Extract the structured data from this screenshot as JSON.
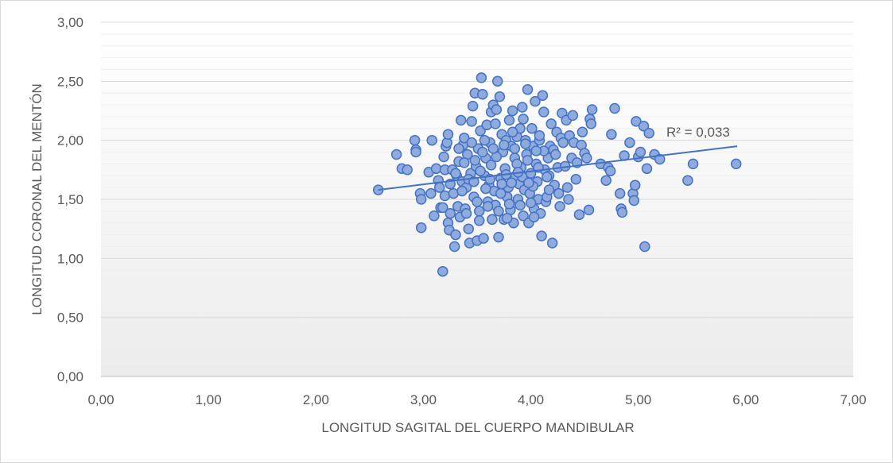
{
  "chart_data": {
    "type": "scatter",
    "title": "",
    "xlabel": "LONGITUD SAGITAL DEL CUERPO MANDIBULAR",
    "ylabel": "LONGITUD CORONAL DEL MENTÓN",
    "xlim": [
      0,
      7
    ],
    "ylim": [
      0,
      3
    ],
    "x_ticks": [
      "0,00",
      "1,00",
      "2,00",
      "3,00",
      "4,00",
      "5,00",
      "6,00",
      "7,00"
    ],
    "y_ticks": [
      "0,00",
      "0,50",
      "1,00",
      "1,50",
      "2,00",
      "2,50",
      "3,00"
    ],
    "grid": true,
    "legend": "none",
    "trendline": {
      "type": "linear",
      "x": [
        2.58,
        5.92
      ],
      "y": [
        1.58,
        1.95
      ],
      "label": "R² = 0,033"
    },
    "colors": {
      "marker_fill": "#8faadc",
      "marker_stroke": "#4472c4",
      "trendline": "#4472c4",
      "grid": "#d9d9d9"
    },
    "points": [
      [
        2.58,
        1.58
      ],
      [
        2.75,
        1.88
      ],
      [
        2.8,
        1.76
      ],
      [
        2.85,
        1.75
      ],
      [
        2.92,
        2.0
      ],
      [
        2.93,
        1.92
      ],
      [
        2.93,
        1.9
      ],
      [
        2.97,
        1.55
      ],
      [
        2.98,
        1.5
      ],
      [
        2.98,
        1.26
      ],
      [
        3.05,
        1.73
      ],
      [
        3.07,
        1.55
      ],
      [
        3.08,
        2.0
      ],
      [
        3.1,
        1.36
      ],
      [
        3.12,
        1.76
      ],
      [
        3.14,
        1.66
      ],
      [
        3.15,
        1.6
      ],
      [
        3.16,
        1.43
      ],
      [
        3.18,
        1.43
      ],
      [
        3.18,
        0.89
      ],
      [
        3.19,
        1.86
      ],
      [
        3.2,
        1.75
      ],
      [
        3.2,
        1.53
      ],
      [
        3.21,
        1.95
      ],
      [
        3.22,
        1.98
      ],
      [
        3.23,
        2.05
      ],
      [
        3.23,
        1.3
      ],
      [
        3.24,
        1.24
      ],
      [
        3.25,
        1.38
      ],
      [
        3.27,
        1.75
      ],
      [
        3.28,
        1.55
      ],
      [
        3.29,
        1.1
      ],
      [
        3.3,
        1.2
      ],
      [
        3.31,
        1.7
      ],
      [
        3.32,
        1.44
      ],
      [
        3.33,
        1.82
      ],
      [
        3.34,
        1.35
      ],
      [
        3.35,
        2.17
      ],
      [
        3.36,
        1.65
      ],
      [
        3.37,
        1.96
      ],
      [
        3.38,
        2.02
      ],
      [
        3.39,
        1.42
      ],
      [
        3.4,
        1.38
      ],
      [
        3.4,
        1.6
      ],
      [
        3.41,
        1.88
      ],
      [
        3.42,
        1.25
      ],
      [
        3.43,
        1.13
      ],
      [
        3.44,
        1.72
      ],
      [
        3.45,
        2.16
      ],
      [
        3.46,
        2.29
      ],
      [
        3.47,
        1.52
      ],
      [
        3.48,
        2.4
      ],
      [
        3.49,
        1.78
      ],
      [
        3.5,
        1.15
      ],
      [
        3.51,
        1.93
      ],
      [
        3.52,
        1.4
      ],
      [
        3.53,
        2.08
      ],
      [
        3.54,
        2.53
      ],
      [
        3.55,
        2.39
      ],
      [
        3.56,
        1.17
      ],
      [
        3.57,
        1.7
      ],
      [
        3.58,
        1.85
      ],
      [
        3.59,
        2.13
      ],
      [
        3.6,
        1.48
      ],
      [
        3.61,
        1.62
      ],
      [
        3.62,
        1.98
      ],
      [
        3.63,
        2.24
      ],
      [
        3.64,
        1.33
      ],
      [
        3.65,
        2.3
      ],
      [
        3.66,
        1.57
      ],
      [
        3.67,
        1.45
      ],
      [
        3.68,
        2.26
      ],
      [
        3.69,
        2.5
      ],
      [
        3.7,
        1.18
      ],
      [
        3.71,
        2.37
      ],
      [
        3.72,
        1.68
      ],
      [
        3.73,
        2.05
      ],
      [
        3.74,
        1.9
      ],
      [
        3.75,
        1.33
      ],
      [
        3.76,
        1.76
      ],
      [
        3.77,
        2.0
      ],
      [
        3.78,
        1.52
      ],
      [
        3.79,
        1.6
      ],
      [
        3.8,
        2.17
      ],
      [
        3.81,
        1.41
      ],
      [
        3.82,
        1.95
      ],
      [
        3.83,
        2.25
      ],
      [
        3.84,
        1.3
      ],
      [
        3.85,
        1.85
      ],
      [
        3.86,
        1.7
      ],
      [
        3.87,
        2.03
      ],
      [
        3.88,
        1.5
      ],
      [
        3.89,
        1.63
      ],
      [
        3.9,
        2.1
      ],
      [
        3.91,
        1.77
      ],
      [
        3.92,
        2.28
      ],
      [
        3.93,
        1.36
      ],
      [
        3.94,
        1.58
      ],
      [
        3.95,
        2.0
      ],
      [
        3.96,
        1.88
      ],
      [
        3.97,
        2.43
      ],
      [
        3.98,
        1.3
      ],
      [
        3.99,
        1.55
      ],
      [
        4.0,
        1.72
      ],
      [
        4.01,
        2.1
      ],
      [
        4.02,
        1.95
      ],
      [
        4.03,
        1.42
      ],
      [
        4.04,
        2.33
      ],
      [
        4.05,
        1.8
      ],
      [
        4.06,
        1.65
      ],
      [
        4.07,
        1.5
      ],
      [
        4.08,
        2.0
      ],
      [
        4.09,
        1.38
      ],
      [
        4.1,
        1.19
      ],
      [
        4.11,
        2.38
      ],
      [
        4.12,
        2.24
      ],
      [
        4.13,
        1.75
      ],
      [
        4.14,
        1.48
      ],
      [
        4.15,
        1.52
      ],
      [
        4.16,
        1.85
      ],
      [
        4.17,
        1.7
      ],
      [
        4.18,
        1.95
      ],
      [
        4.19,
        2.14
      ],
      [
        4.2,
        1.13
      ],
      [
        4.21,
        1.92
      ],
      [
        4.22,
        1.62
      ],
      [
        4.23,
        1.88
      ],
      [
        4.24,
        2.07
      ],
      [
        4.25,
        1.77
      ],
      [
        4.26,
        1.55
      ],
      [
        4.27,
        1.44
      ],
      [
        4.28,
        2.02
      ],
      [
        4.29,
        2.23
      ],
      [
        4.3,
        1.98
      ],
      [
        4.32,
        1.78
      ],
      [
        4.33,
        2.17
      ],
      [
        4.34,
        1.6
      ],
      [
        4.35,
        1.5
      ],
      [
        4.36,
        2.04
      ],
      [
        4.38,
        1.85
      ],
      [
        4.39,
        2.21
      ],
      [
        4.4,
        1.98
      ],
      [
        4.42,
        1.67
      ],
      [
        4.43,
        1.81
      ],
      [
        4.45,
        1.37
      ],
      [
        4.47,
        1.96
      ],
      [
        4.48,
        2.07
      ],
      [
        4.5,
        1.89
      ],
      [
        4.52,
        1.85
      ],
      [
        4.54,
        1.41
      ],
      [
        4.55,
        2.18
      ],
      [
        4.56,
        2.14
      ],
      [
        4.57,
        2.26
      ],
      [
        4.65,
        1.8
      ],
      [
        4.7,
        1.66
      ],
      [
        4.72,
        1.77
      ],
      [
        4.74,
        1.74
      ],
      [
        4.75,
        2.05
      ],
      [
        4.78,
        2.27
      ],
      [
        4.83,
        1.55
      ],
      [
        4.84,
        1.42
      ],
      [
        4.85,
        1.39
      ],
      [
        4.87,
        1.87
      ],
      [
        4.92,
        1.98
      ],
      [
        4.95,
        1.55
      ],
      [
        4.96,
        1.49
      ],
      [
        4.97,
        1.62
      ],
      [
        4.98,
        2.16
      ],
      [
        5.0,
        1.86
      ],
      [
        5.02,
        1.9
      ],
      [
        5.05,
        2.12
      ],
      [
        5.06,
        1.1
      ],
      [
        5.08,
        1.76
      ],
      [
        5.1,
        2.06
      ],
      [
        5.15,
        1.88
      ],
      [
        5.2,
        1.84
      ],
      [
        5.46,
        1.66
      ],
      [
        5.51,
        1.8
      ],
      [
        5.91,
        1.8
      ],
      [
        3.25,
        1.63
      ],
      [
        3.3,
        1.72
      ],
      [
        3.36,
        1.57
      ],
      [
        3.42,
        1.67
      ],
      [
        3.48,
        1.83
      ],
      [
        3.53,
        1.74
      ],
      [
        3.58,
        1.59
      ],
      [
        3.63,
        1.79
      ],
      [
        3.68,
        1.86
      ],
      [
        3.72,
        1.55
      ],
      [
        3.77,
        1.71
      ],
      [
        3.82,
        1.64
      ],
      [
        3.87,
        1.8
      ],
      [
        3.92,
        1.69
      ],
      [
        3.97,
        1.83
      ],
      [
        4.02,
        1.61
      ],
      [
        4.07,
        1.77
      ],
      [
        4.12,
        1.91
      ],
      [
        4.17,
        1.58
      ],
      [
        3.45,
        1.98
      ],
      [
        3.55,
        1.9
      ],
      [
        3.65,
        1.93
      ],
      [
        3.75,
        1.96
      ],
      [
        3.85,
        1.93
      ],
      [
        3.95,
        1.97
      ],
      [
        4.05,
        1.91
      ],
      [
        3.5,
        1.48
      ],
      [
        3.6,
        1.44
      ],
      [
        3.7,
        1.4
      ],
      [
        3.8,
        1.46
      ],
      [
        3.9,
        1.45
      ],
      [
        4.0,
        1.47
      ],
      [
        3.38,
        1.81
      ],
      [
        3.62,
        1.67
      ],
      [
        3.88,
        1.73
      ],
      [
        4.15,
        1.69
      ],
      [
        3.33,
        1.93
      ],
      [
        3.57,
        2.0
      ],
      [
        3.83,
        2.07
      ],
      [
        4.08,
        2.04
      ],
      [
        3.47,
        1.65
      ],
      [
        3.73,
        1.63
      ],
      [
        3.98,
        1.64
      ],
      [
        3.52,
        1.32
      ],
      [
        3.78,
        1.34
      ],
      [
        4.03,
        1.35
      ],
      [
        3.67,
        2.14
      ],
      [
        3.93,
        2.18
      ]
    ]
  }
}
